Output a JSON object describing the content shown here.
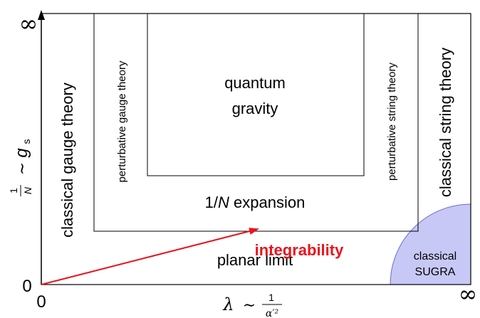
{
  "axes": {
    "y_top": "∞",
    "y_bottom": "0",
    "x_left": "0",
    "x_right": "∞",
    "y_label": {
      "frac_num": "1",
      "frac_den": "N",
      "tilde": "∼",
      "symbol": "g",
      "subscript": "s"
    },
    "x_label": {
      "symbol": "λ",
      "tilde": "∼",
      "frac_num": "1",
      "frac_den": "α′²"
    }
  },
  "regions": {
    "classical_gauge": "classical gauge theory",
    "perturbative_gauge": "perturbative gauge theory",
    "quantum_gravity_line1": "quantum",
    "quantum_gravity_line2": "gravity",
    "one_over_n": "1/",
    "one_over_n_italic": "N",
    "one_over_n_rest": " expansion",
    "perturbative_string": "perturbative string theory",
    "classical_string": "classical string theory",
    "planar_limit": "planar limit",
    "sugra_line1": "classical",
    "sugra_line2": "SUGRA"
  },
  "annotation": {
    "integrability": "integrability",
    "arrow_color": "#e8141e"
  },
  "colors": {
    "sugra_fill": "#c8c8f6",
    "sugra_stroke": "#6a6ad0",
    "line": "#000000"
  }
}
